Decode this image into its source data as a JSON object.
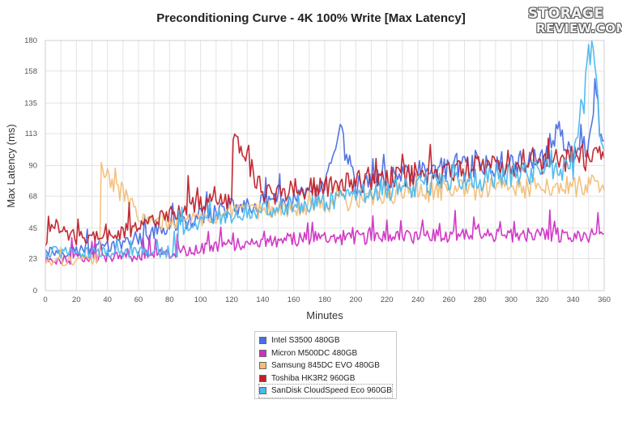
{
  "chart_data": {
    "type": "line",
    "title": "Preconditioning Curve - 4K 100% Write [Max Latency]",
    "xlabel": "Minutes",
    "ylabel": "Max Latency (ms)",
    "xlim": [
      0,
      360
    ],
    "ylim": [
      0,
      180
    ],
    "x_ticks": [
      0,
      20,
      40,
      60,
      80,
      100,
      120,
      140,
      160,
      180,
      200,
      220,
      240,
      260,
      280,
      300,
      320,
      340,
      360
    ],
    "y_ticks": [
      0,
      23,
      45,
      68,
      90,
      113,
      135,
      158,
      180
    ],
    "grid": true,
    "legend_position": "bottom-center",
    "series": [
      {
        "name": "Intel S3500 480GB",
        "color": "#4a6fe3",
        "x": [
          0,
          20,
          40,
          60,
          80,
          100,
          120,
          140,
          160,
          180,
          190,
          200,
          220,
          240,
          260,
          280,
          300,
          320,
          330,
          340,
          350,
          354,
          360
        ],
        "y": [
          28,
          29,
          31,
          36,
          45,
          53,
          60,
          63,
          66,
          72,
          112,
          75,
          80,
          85,
          87,
          90,
          92,
          95,
          114,
          98,
          102,
          140,
          104
        ]
      },
      {
        "name": "Micron M500DC 480GB",
        "color": "#d02fc4",
        "x": [
          0,
          20,
          40,
          60,
          80,
          100,
          120,
          140,
          160,
          180,
          200,
          220,
          240,
          260,
          280,
          300,
          320,
          340,
          360
        ],
        "y": [
          22,
          23,
          24,
          25,
          27,
          30,
          33,
          35,
          37,
          38,
          38,
          39,
          39,
          40,
          40,
          40,
          40,
          40,
          40
        ]
      },
      {
        "name": "Samsung 845DC EVO 480GB",
        "color": "#f2bf7a",
        "x": [
          0,
          20,
          35,
          36,
          50,
          65,
          70,
          80,
          100,
          120,
          140,
          160,
          180,
          200,
          220,
          240,
          260,
          280,
          300,
          320,
          340,
          360
        ],
        "y": [
          20,
          21,
          24,
          84,
          70,
          48,
          50,
          48,
          52,
          55,
          58,
          60,
          62,
          65,
          67,
          70,
          72,
          73,
          73,
          74,
          75,
          76
        ]
      },
      {
        "name": "Toshiba HK3R2 960GB",
        "color": "#c0202a",
        "x": [
          0,
          5,
          20,
          40,
          60,
          80,
          100,
          120,
          121,
          140,
          160,
          180,
          200,
          220,
          240,
          260,
          280,
          300,
          320,
          340,
          360
        ],
        "y": [
          33,
          48,
          38,
          40,
          45,
          55,
          62,
          65,
          119,
          68,
          72,
          75,
          78,
          81,
          84,
          86,
          89,
          91,
          93,
          95,
          97
        ]
      },
      {
        "name": "SanDisk CloudSpeed Eco 960GB",
        "color": "#4bb8ee",
        "x": [
          0,
          20,
          40,
          60,
          70,
          85,
          86,
          100,
          120,
          140,
          160,
          180,
          200,
          220,
          240,
          260,
          280,
          300,
          320,
          340,
          352,
          360
        ],
        "y": [
          28,
          27,
          28,
          28,
          28,
          27,
          45,
          50,
          55,
          58,
          62,
          65,
          68,
          72,
          75,
          78,
          80,
          83,
          86,
          89,
          177,
          92
        ]
      }
    ]
  },
  "logo": {
    "line1": "STORAGE",
    "line2": "REVIEW.COM"
  }
}
